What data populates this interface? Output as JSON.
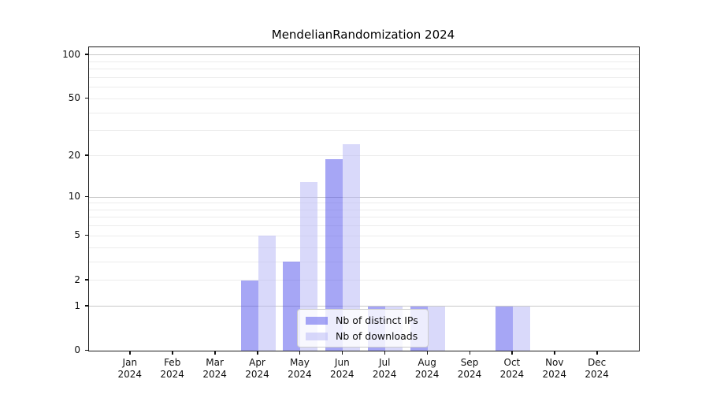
{
  "title": "MendelianRandomization 2024",
  "colors": {
    "ips_bar": "rgba(77,77,235,0.5)",
    "downloads_bar": "rgba(179,179,245,0.5)",
    "major_grid": "#c8c8c8",
    "minor_grid": "#ececec",
    "spine": "#1a1a1a"
  },
  "legend": {
    "items": [
      {
        "label": "Nb of distinct IPs",
        "color_key": "ips_bar"
      },
      {
        "label": "Nb of downloads",
        "color_key": "downloads_bar"
      }
    ]
  },
  "chart_data": {
    "type": "bar",
    "title": "MendelianRandomization 2024",
    "categories": [
      "Jan",
      "Feb",
      "Mar",
      "Apr",
      "May",
      "Jun",
      "Jul",
      "Aug",
      "Sep",
      "Oct",
      "Nov",
      "Dec"
    ],
    "category_year": "2024",
    "series": [
      {
        "name": "Nb of distinct IPs",
        "color_key": "ips_bar",
        "values": [
          0,
          0,
          0,
          2,
          3,
          19,
          1,
          1,
          0,
          1,
          0,
          0
        ]
      },
      {
        "name": "Nb of downloads",
        "color_key": "downloads_bar",
        "values": [
          0,
          0,
          0,
          5,
          13,
          24,
          1,
          1,
          0,
          1,
          0,
          0
        ]
      }
    ],
    "ylabel": "",
    "xlabel": "",
    "yticks": [
      0,
      1,
      2,
      5,
      10,
      20,
      50,
      100
    ],
    "major_gridlines": [
      1,
      10,
      100
    ],
    "minor_gridlines": [
      3,
      4,
      6,
      7,
      8,
      9,
      30,
      40,
      60,
      70,
      80,
      90,
      2,
      5,
      20,
      50
    ],
    "scale": "log1p",
    "ylim": [
      0,
      113
    ],
    "grid": true,
    "legend_position": "lower center"
  }
}
